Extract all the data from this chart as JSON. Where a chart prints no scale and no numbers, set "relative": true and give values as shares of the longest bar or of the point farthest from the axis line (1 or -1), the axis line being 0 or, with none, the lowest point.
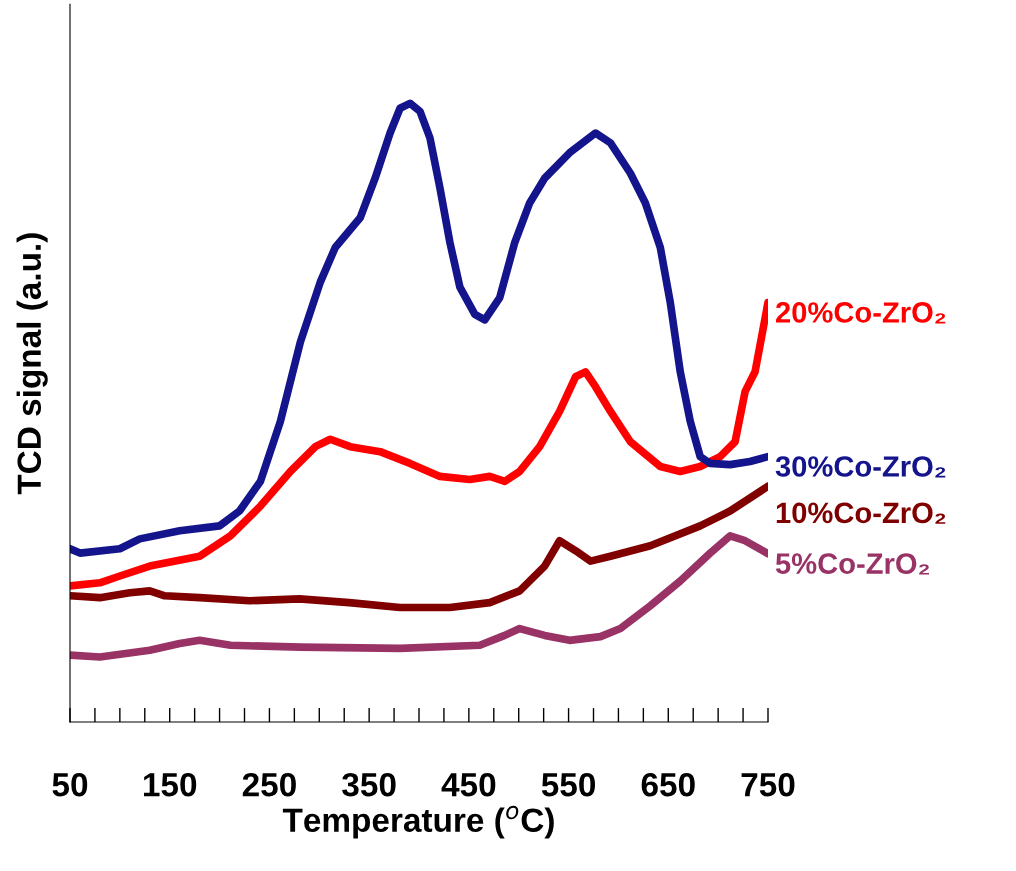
{
  "chart_data": {
    "type": "line",
    "relative": true,
    "xlabel": "Temperature ($^{o}$C)",
    "ylabel": "TCD signal (a.u.)",
    "xlim": [
      50,
      750
    ],
    "xticks": [
      50,
      {
        "value": 75,
        "label": null
      },
      {
        "value": 100,
        "label": null
      },
      {
        "value": 125,
        "label": null
      },
      150,
      {
        "value": 175,
        "label": null
      },
      {
        "value": 200,
        "label": null
      },
      {
        "value": 225,
        "label": null
      },
      250,
      {
        "value": 275,
        "label": null
      },
      {
        "value": 300,
        "label": null
      },
      {
        "value": 325,
        "label": null
      },
      350,
      {
        "value": 375,
        "label": null
      },
      {
        "value": 400,
        "label": null
      },
      {
        "value": 425,
        "label": null
      },
      450,
      {
        "value": 475,
        "label": null
      },
      {
        "value": 500,
        "label": null
      },
      {
        "value": 525,
        "label": null
      },
      550,
      {
        "value": 575,
        "label": null
      },
      {
        "value": 600,
        "label": null
      },
      {
        "value": 625,
        "label": null
      },
      650,
      {
        "value": 675,
        "label": null
      },
      {
        "value": 700,
        "label": null
      },
      {
        "value": 725,
        "label": null
      },
      750
    ],
    "grid": false,
    "legend": false,
    "tick_labels": "x",
    "marker": "none",
    "line_style": "solid",
    "series": [
      {
        "name": "20%Co-ZrO₂",
        "color": "#ff0000",
        "x": [
          50,
          80,
          100,
          130,
          180,
          211,
          241,
          271,
          296,
          311,
          331,
          361,
          391,
          421,
          451,
          471,
          486,
          501,
          521,
          541,
          557,
          567,
          577,
          592,
          612,
          642,
          662,
          682,
          702,
          717,
          727,
          737,
          750
        ],
        "values": [
          0.22,
          0.225,
          0.236,
          0.252,
          0.268,
          0.301,
          0.349,
          0.405,
          0.445,
          0.457,
          0.445,
          0.437,
          0.418,
          0.397,
          0.392,
          0.397,
          0.389,
          0.405,
          0.445,
          0.502,
          0.558,
          0.566,
          0.542,
          0.502,
          0.453,
          0.413,
          0.405,
          0.413,
          0.429,
          0.453,
          0.534,
          0.566,
          0.678
        ]
      },
      {
        "name": "30%Co-ZrO₂",
        "color": "#14148c",
        "x": [
          50,
          60,
          100,
          120,
          160,
          200,
          220,
          241,
          261,
          281,
          301,
          316,
          341,
          356,
          371,
          381,
          391,
          401,
          411,
          421,
          431,
          441,
          456,
          466,
          481,
          496,
          511,
          526,
          551,
          577,
          592,
          612,
          627,
          642,
          652,
          662,
          672,
          682,
          692,
          712,
          732,
          750
        ],
        "values": [
          0.28,
          0.273,
          0.28,
          0.296,
          0.309,
          0.317,
          0.341,
          0.389,
          0.486,
          0.614,
          0.711,
          0.767,
          0.815,
          0.879,
          0.952,
          0.992,
          1.0,
          0.987,
          0.944,
          0.863,
          0.775,
          0.703,
          0.659,
          0.65,
          0.686,
          0.775,
          0.839,
          0.879,
          0.92,
          0.952,
          0.936,
          0.887,
          0.839,
          0.767,
          0.678,
          0.566,
          0.486,
          0.429,
          0.418,
          0.416,
          0.421,
          0.429
        ]
      },
      {
        "name": "10%Co-ZrO₂",
        "color": "#800000",
        "x": [
          50,
          80,
          110,
          130,
          145,
          180,
          230,
          280,
          330,
          381,
          431,
          471,
          501,
          526,
          541,
          557,
          572,
          592,
          632,
          682,
          712,
          732,
          750
        ],
        "values": [
          0.204,
          0.201,
          0.209,
          0.212,
          0.204,
          0.201,
          0.196,
          0.199,
          0.193,
          0.185,
          0.185,
          0.193,
          0.212,
          0.252,
          0.293,
          0.277,
          0.26,
          0.268,
          0.285,
          0.317,
          0.341,
          0.362,
          0.381
        ]
      },
      {
        "name": "5%Co-ZrO₂",
        "color": "#993366",
        "x": [
          50,
          80,
          130,
          160,
          180,
          211,
          281,
          381,
          461,
          486,
          501,
          526,
          551,
          582,
          602,
          632,
          662,
          692,
          712,
          727,
          750
        ],
        "values": [
          0.108,
          0.105,
          0.116,
          0.127,
          0.132,
          0.124,
          0.121,
          0.119,
          0.124,
          0.14,
          0.151,
          0.14,
          0.132,
          0.138,
          0.151,
          0.188,
          0.228,
          0.273,
          0.301,
          0.293,
          0.272
        ]
      }
    ]
  }
}
